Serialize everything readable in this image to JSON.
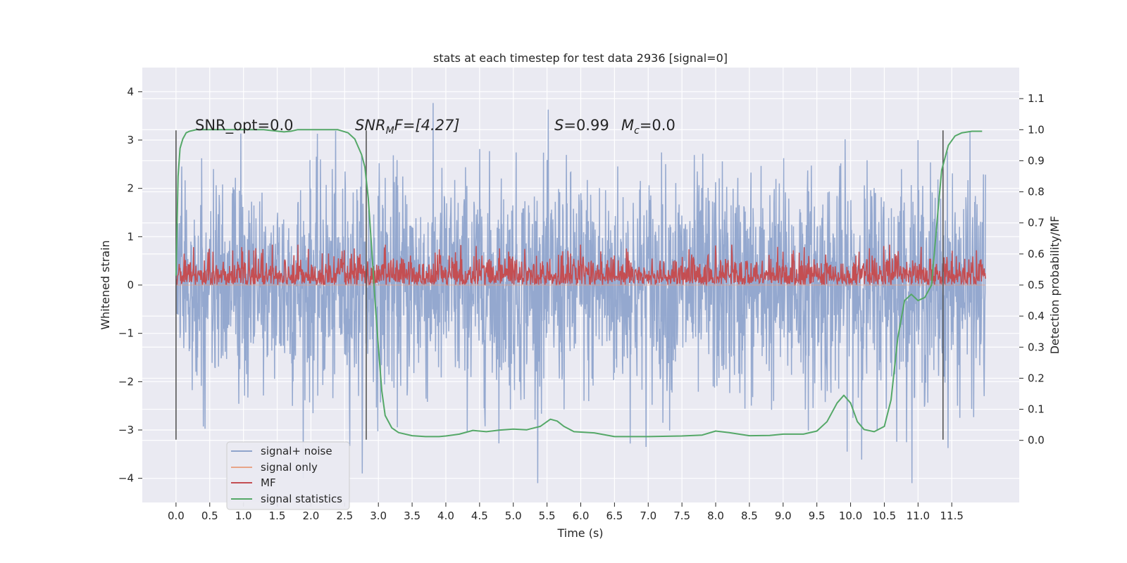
{
  "chart_data": {
    "type": "line",
    "title": "stats at each timestep for test data 2936 [signal=0]",
    "xlabel": "Time (s)",
    "ylabel_left": "Whitened strain",
    "ylabel_right": "Detection probability/MF",
    "xlim": [
      -0.5,
      12.5
    ],
    "ylim_left": [
      -4.5,
      4.5
    ],
    "ylim_right": [
      -0.2,
      1.2
    ],
    "xticks": [
      "0.0",
      "0.5",
      "1.0",
      "1.5",
      "2.0",
      "2.5",
      "3.0",
      "3.5",
      "4.0",
      "4.5",
      "5.0",
      "5.5",
      "6.0",
      "6.5",
      "7.0",
      "7.5",
      "8.0",
      "8.5",
      "9.0",
      "9.5",
      "10.0",
      "10.5",
      "11.0",
      "11.5"
    ],
    "yticks_left": [
      "−4",
      "−3",
      "−2",
      "−1",
      "0",
      "1",
      "2",
      "3",
      "4"
    ],
    "yticks_right": [
      "0.0",
      "0.1",
      "0.2",
      "0.3",
      "0.4",
      "0.5",
      "0.6",
      "0.7",
      "0.8",
      "0.9",
      "1.0",
      "1.1"
    ],
    "grid": true,
    "legend_position": "lower-left",
    "annotations": {
      "snr_opt": "SNR_opt=0.0",
      "snr_mf_name": "SNR",
      "snr_mf_sub": "M",
      "snr_mf_tail": "F=[4.27]",
      "s_name": "S",
      "s_value": "=0.99",
      "mc_name": "M",
      "mc_sub": "c",
      "mc_value": "=0.0"
    },
    "vertical_markers": [
      0.0,
      2.82,
      11.37
    ],
    "series": [
      {
        "name": "signal+ noise",
        "color": "#8fa4cc",
        "description": "whitened strain time series, approx Gaussian noise amplitude up to about ±4",
        "x_range": [
          0.0,
          12.0
        ],
        "y_peak_range": [
          -4.1,
          4.1
        ]
      },
      {
        "name": "signal only",
        "color": "#e8a488",
        "description": "flat at 0 (no signal injected)"
      },
      {
        "name": "MF",
        "color": "#c44e52",
        "description": "matched-filter output on right axis, fluctuating between about 0.50 and 0.63",
        "x_range": [
          0.0,
          12.0
        ],
        "y_range": [
          0.5,
          0.63
        ]
      },
      {
        "name": "signal statistics",
        "color": "#55a868",
        "x": [
          0.0,
          0.03,
          0.06,
          0.1,
          0.15,
          0.2,
          0.3,
          0.5,
          0.8,
          1.0,
          1.3,
          1.6,
          1.7,
          1.8,
          2.0,
          2.2,
          2.4,
          2.55,
          2.65,
          2.75,
          2.8,
          2.85,
          2.9,
          2.95,
          3.0,
          3.05,
          3.1,
          3.2,
          3.3,
          3.5,
          3.7,
          3.9,
          4.0,
          4.2,
          4.4,
          4.6,
          4.8,
          5.0,
          5.2,
          5.4,
          5.55,
          5.65,
          5.75,
          5.9,
          6.2,
          6.5,
          7.0,
          7.5,
          7.8,
          8.0,
          8.2,
          8.5,
          8.8,
          9.0,
          9.3,
          9.5,
          9.65,
          9.8,
          9.9,
          10.0,
          10.1,
          10.2,
          10.35,
          10.5,
          10.6,
          10.7,
          10.8,
          10.9,
          11.0,
          11.1,
          11.2,
          11.3,
          11.35,
          11.45,
          11.55,
          11.65,
          11.8,
          11.95
        ],
        "y": [
          0.53,
          0.85,
          0.94,
          0.97,
          0.99,
          0.995,
          1.0,
          1.0,
          1.0,
          1.0,
          1.0,
          0.993,
          0.995,
          1.0,
          1.0,
          1.0,
          1.0,
          0.99,
          0.97,
          0.92,
          0.88,
          0.78,
          0.62,
          0.45,
          0.3,
          0.16,
          0.08,
          0.04,
          0.025,
          0.015,
          0.012,
          0.012,
          0.014,
          0.02,
          0.032,
          0.028,
          0.033,
          0.036,
          0.034,
          0.045,
          0.068,
          0.062,
          0.045,
          0.028,
          0.024,
          0.012,
          0.012,
          0.014,
          0.017,
          0.03,
          0.025,
          0.015,
          0.016,
          0.02,
          0.02,
          0.03,
          0.06,
          0.12,
          0.145,
          0.12,
          0.06,
          0.035,
          0.028,
          0.045,
          0.13,
          0.33,
          0.45,
          0.47,
          0.45,
          0.46,
          0.5,
          0.75,
          0.87,
          0.95,
          0.98,
          0.99,
          0.995,
          0.995
        ]
      }
    ]
  }
}
